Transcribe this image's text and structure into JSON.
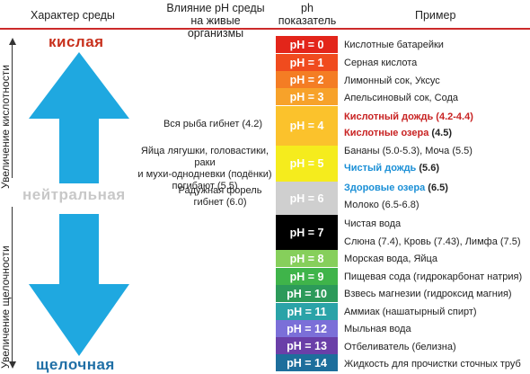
{
  "headers": {
    "environment": "Характер среды",
    "effect_line1": "Влияние pH среды",
    "effect_line2": "на живые организмы",
    "ph_line1": "ph",
    "ph_line2": "показатель",
    "example": "Пример"
  },
  "axis": {
    "acidity": "Увеличение кислотности",
    "alkalinity": "Увеличение щелочности"
  },
  "environments": {
    "acidic": "кислая",
    "neutral": "нейтральная",
    "alkaline": "щелочная"
  },
  "colors": {
    "acidic": "#c8301c",
    "neutral": "#c8c8c8",
    "alkaline": "#1f6fa6",
    "arrow": "#1fa8e0"
  },
  "ph_scale": [
    {
      "label": "pH = 0",
      "color": "#e3251a"
    },
    {
      "label": "pH = 1",
      "color": "#f04b1e"
    },
    {
      "label": "pH = 2",
      "color": "#f47d24"
    },
    {
      "label": "pH = 3",
      "color": "#f7a22a"
    },
    {
      "label": "pH = 4",
      "color": "#fbc22c"
    },
    {
      "label": "pH = 5",
      "color": "#f5ec1d"
    },
    {
      "label": "pH = 6",
      "color": "#cfcfcf"
    },
    {
      "label": "pH = 7",
      "color": "#000000"
    },
    {
      "label": "pH = 8",
      "color": "#86cf5b"
    },
    {
      "label": "pH = 9",
      "color": "#3fb44a"
    },
    {
      "label": "pH = 10",
      "color": "#2c9a5a"
    },
    {
      "label": "pH = 11",
      "color": "#2aa3a8"
    },
    {
      "label": "pH = 12",
      "color": "#7b6fd8"
    },
    {
      "label": "pH = 13",
      "color": "#6a3fa8"
    },
    {
      "label": "pH = 14",
      "color": "#1d6e9c"
    }
  ],
  "effects": {
    "fish": "Вся рыба гибнет (4.2)",
    "frog_1": "Яйца лягушки, головастики, раки",
    "frog_2": "и мухи-однодневки (подёнки)",
    "frog_3": "погибают (5.5)",
    "trout_1": "Радужная форель",
    "trout_2": "гибнет (6.0)"
  },
  "examples": {
    "ex0": "Кислотные батарейки",
    "ex1": "Серная кислота",
    "ex2": "Лимонный сок, Уксус",
    "ex3": "Апельсиновый сок, Сода",
    "ex4a": "Кислотный дождь",
    "ex4a_val": "(4.2-4.4)",
    "ex4b": "Кислотные озера",
    "ex4b_val": "(4.5)",
    "ex5a": "Бананы (5.0-5.3), Моча (5.5)",
    "ex5b": "Чистый дождь",
    "ex5b_val": "(5.6)",
    "ex6a": "Здоровые озера",
    "ex6a_val": "(6.5)",
    "ex6b": "Молоко (6.5-6.8)",
    "ex7a": "Чистая вода",
    "ex7b": "Слюна (7.4), Кровь (7.43), Лимфа (7.5)",
    "ex8": "Морская вода, Яйца",
    "ex9": "Пищевая сода (гидрокарбонат натрия)",
    "ex10": "Взвесь магнезии (гидроксид магния)",
    "ex11": "Аммиак (нашатырный спирт)",
    "ex12": "Мыльная вода",
    "ex13": "Отбеливатель (белизна)",
    "ex14": "Жидкость для прочистки сточных труб"
  }
}
